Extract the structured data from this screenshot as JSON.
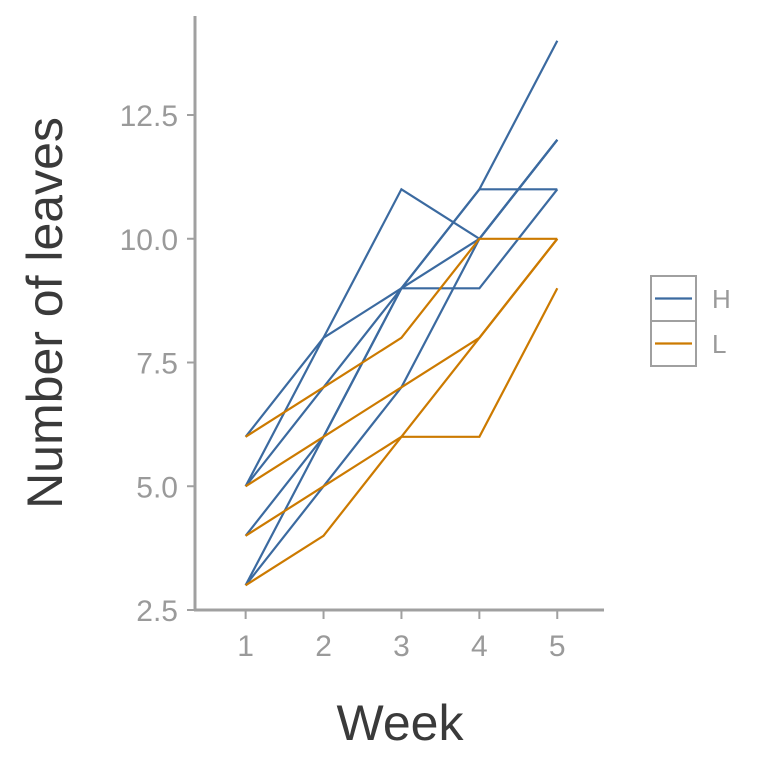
{
  "chart_data": {
    "type": "line",
    "title": "",
    "xlabel": "Week",
    "ylabel": "Number of leaves",
    "x": [
      1,
      2,
      3,
      4,
      5
    ],
    "xticks": [
      "1",
      "2",
      "3",
      "4",
      "5"
    ],
    "yticks": [
      "2.5",
      "5.0",
      "7.5",
      "10.0",
      "12.5"
    ],
    "xlim": [
      0.35,
      5.6
    ],
    "ylim": [
      2.5,
      14.5
    ],
    "grid": false,
    "legend_position": "right",
    "series": [
      {
        "name": "H",
        "color": "#3b6aa0",
        "lines": [
          [
            6,
            8,
            9,
            10,
            12
          ],
          [
            5,
            8,
            11,
            10,
            12
          ],
          [
            5,
            7,
            9,
            9,
            11
          ],
          [
            4,
            6,
            9,
            11,
            11
          ],
          [
            3,
            5,
            7,
            10,
            12
          ],
          [
            3,
            6,
            9,
            11,
            14
          ]
        ]
      },
      {
        "name": "L",
        "color": "#cc7a00",
        "lines": [
          [
            6,
            7,
            8,
            10,
            10
          ],
          [
            5,
            6,
            7,
            8,
            10
          ],
          [
            4,
            5,
            6,
            8,
            10
          ],
          [
            3,
            4,
            6,
            6,
            9
          ]
        ]
      }
    ]
  }
}
